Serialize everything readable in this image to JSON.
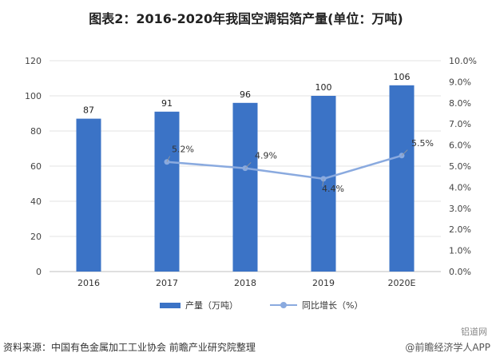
{
  "chart_data": {
    "type": "bar",
    "title": "图表2：2016-2020年我国空调铝箔产量(单位：万吨)",
    "categories": [
      "2016",
      "2017",
      "2018",
      "2019",
      "2020E"
    ],
    "series": [
      {
        "name": "产量（万吨）",
        "type": "bar",
        "axis": "left",
        "values": [
          87,
          91,
          96,
          100,
          106
        ],
        "color": "#3b73c6"
      },
      {
        "name": "同比增长（%）",
        "type": "line",
        "axis": "right",
        "x": [
          "2017",
          "2018",
          "2019",
          "2020E"
        ],
        "values": [
          5.2,
          4.9,
          4.4,
          5.5
        ],
        "labels": [
          "5.2%",
          "4.9%",
          "4.4%",
          "5.5%"
        ],
        "color": "#8aaadf"
      }
    ],
    "bar_labels": [
      "87",
      "91",
      "96",
      "100",
      "106"
    ],
    "y_left": {
      "ylim": [
        0,
        120
      ],
      "ticks": [
        "0",
        "20",
        "40",
        "60",
        "80",
        "100",
        "120"
      ]
    },
    "y_right": {
      "ylim": [
        0,
        10
      ],
      "ticks": [
        "0.0%",
        "1.0%",
        "2.0%",
        "3.0%",
        "4.0%",
        "5.0%",
        "6.0%",
        "7.0%",
        "8.0%",
        "9.0%",
        "10.0%"
      ]
    },
    "grid": true,
    "legend_position": "bottom"
  },
  "legend": {
    "bar_label": "产量（万吨）",
    "line_label": "同比增长（%）"
  },
  "footer": {
    "source": "资料来源：中国有色金属加工工业协会 前瞻产业研究院整理",
    "brand": "@前瞻经济学人APP",
    "watermark": "铝道网"
  }
}
